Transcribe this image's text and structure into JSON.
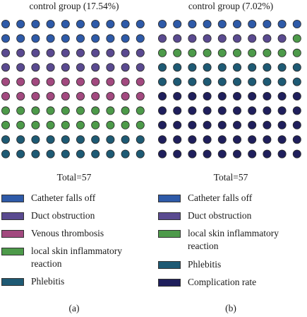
{
  "chart_data": [
    {
      "type": "waffle",
      "title": "control group (17.54%)",
      "total_label": "Total=57",
      "caption": "(a)",
      "grid": {
        "rows": 10,
        "cols": 10
      },
      "row_categories": [
        "Catheter falls off",
        "Catheter falls off",
        "Duct obstruction",
        "Duct obstruction",
        "Venous thrombosis",
        "Venous thrombosis",
        "local skin inflammatory reaction",
        "local skin inflammatory reaction",
        "Phlebitis",
        "Phlebitis"
      ],
      "legend": [
        {
          "label": "Catheter falls off",
          "color": "#2e5aa8"
        },
        {
          "label": "Duct obstruction",
          "color": "#5a4a90"
        },
        {
          "label": "Venous thrombosis",
          "color": "#a2497f"
        },
        {
          "label": "local skin inflammatory reaction",
          "color": "#4d9a4a"
        },
        {
          "label": "Phlebitis",
          "color": "#1e5a74"
        }
      ]
    },
    {
      "type": "waffle",
      "title": "control group (7.02%)",
      "total_label": "Total=57",
      "caption": "(b)",
      "grid": {
        "rows": 10,
        "cols": 10
      },
      "row_categories": [
        "Catheter falls off",
        "Duct obstruction",
        "local skin inflammatory reaction",
        "Phlebitis",
        "Phlebitis",
        "Complication rate",
        "Complication rate",
        "Complication rate",
        "Complication rate",
        "Complication rate"
      ],
      "cell_overrides": [
        {
          "row": 1,
          "col": 9,
          "category": "local skin inflammatory reaction"
        }
      ],
      "legend": [
        {
          "label": "Catheter falls off",
          "color": "#2e5aa8"
        },
        {
          "label": "Duct obstruction",
          "color": "#5a4a90"
        },
        {
          "label": "local skin inflammatory reaction",
          "color": "#4d9a4a"
        },
        {
          "label": "Phlebitis",
          "color": "#1e5a74"
        },
        {
          "label": "Complication rate",
          "color": "#1f1f5c"
        }
      ]
    }
  ]
}
